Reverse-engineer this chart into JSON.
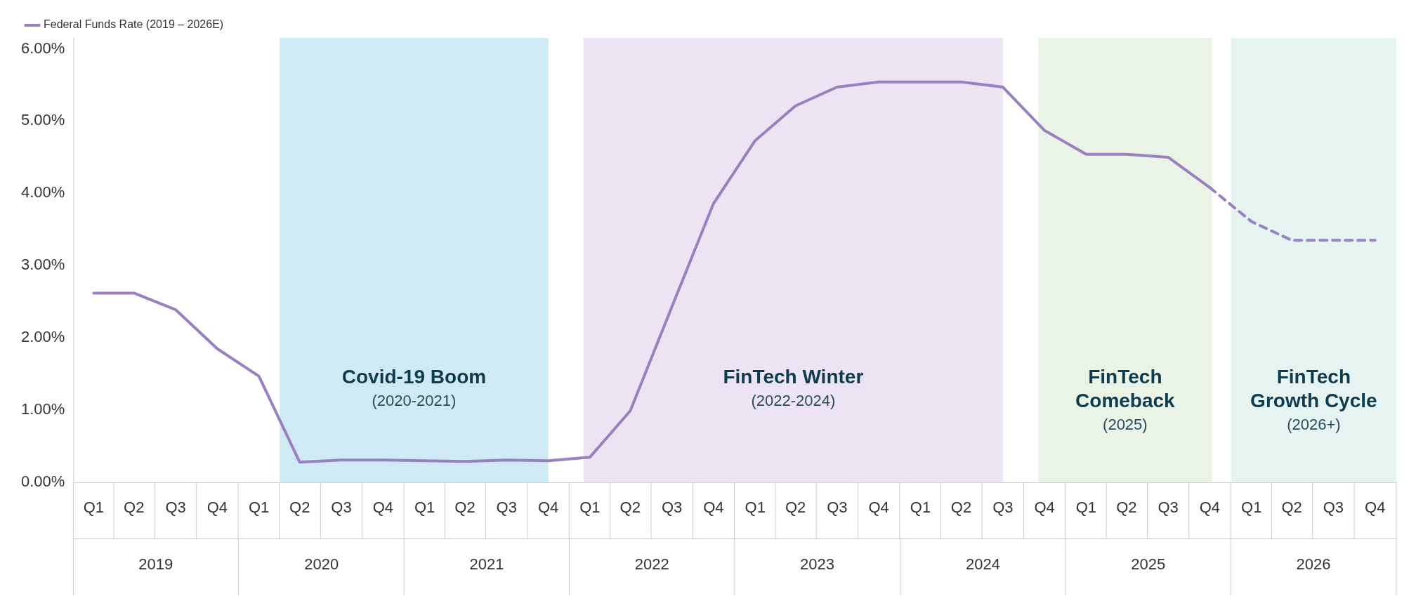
{
  "chart_data": {
    "type": "line",
    "x": [
      "2019-02-15",
      "2019-05-15",
      "2019-08-15",
      "2019-11-15",
      "2020-02-15",
      "2020-05-15",
      "2020-08-15",
      "2020-11-15",
      "2021-02-15",
      "2021-05-15",
      "2021-08-15",
      "2021-11-15",
      "2022-02-15",
      "2022-05-15",
      "2022-08-15",
      "2022-11-15",
      "2023-02-15",
      "2023-05-15",
      "2023-08-15",
      "2023-11-15",
      "2024-02-15",
      "2024-05-15",
      "2024-08-15",
      "2024-11-15",
      "2025-02-15",
      "2025-05-15",
      "2025-08-15",
      "2025-11-15",
      "2026-02-15",
      "2026-05-15",
      "2026-08-15",
      "2026-11-15"
    ],
    "series": [
      {
        "name": "Federal Funds Rate (2019 – 2026E)",
        "color": "#9a7fc1",
        "line_style": "solid",
        "values": [
          2.62,
          2.62,
          2.39,
          1.85,
          1.47,
          0.28,
          0.31,
          0.31,
          0.3,
          0.29,
          0.31,
          0.3,
          0.35,
          0.99,
          2.43,
          3.86,
          4.73,
          5.21,
          5.47,
          5.54,
          5.54,
          5.54,
          5.47,
          4.87,
          4.54,
          4.54,
          4.5,
          4.08,
          null,
          null,
          null,
          null
        ]
      },
      {
        "color": "#9a7fc1",
        "line_style": "dashed",
        "values": [
          null,
          null,
          null,
          null,
          null,
          null,
          null,
          null,
          null,
          null,
          null,
          null,
          null,
          null,
          null,
          null,
          null,
          null,
          null,
          null,
          null,
          null,
          null,
          null,
          null,
          null,
          null,
          4.08,
          3.61,
          3.35,
          3.35,
          3.35
        ]
      }
    ],
    "xlim": [
      "2019-01-01",
      "2027-01-01"
    ],
    "xticks": [
      {
        "value": "2019-02-15",
        "label": "Q1"
      },
      {
        "value": "2019-05-15",
        "label": "Q2"
      },
      {
        "value": "2019-08-15",
        "label": "Q3"
      },
      {
        "value": "2019-11-15",
        "label": "Q4"
      },
      {
        "value": "2020-02-15",
        "label": "Q1"
      },
      {
        "value": "2020-05-15",
        "label": "Q2"
      },
      {
        "value": "2020-08-15",
        "label": "Q3"
      },
      {
        "value": "2020-11-15",
        "label": "Q4"
      },
      {
        "value": "2021-02-15",
        "label": "Q1"
      },
      {
        "value": "2021-05-15",
        "label": "Q2"
      },
      {
        "value": "2021-08-15",
        "label": "Q3"
      },
      {
        "value": "2021-11-15",
        "label": "Q4"
      },
      {
        "value": "2022-02-15",
        "label": "Q1"
      },
      {
        "value": "2022-05-15",
        "label": "Q2"
      },
      {
        "value": "2022-08-15",
        "label": "Q3"
      },
      {
        "value": "2022-11-15",
        "label": "Q4"
      },
      {
        "value": "2023-02-15",
        "label": "Q1"
      },
      {
        "value": "2023-05-15",
        "label": "Q2"
      },
      {
        "value": "2023-08-15",
        "label": "Q3"
      },
      {
        "value": "2023-11-15",
        "label": "Q4"
      },
      {
        "value": "2024-02-15",
        "label": "Q1"
      },
      {
        "value": "2024-05-15",
        "label": "Q2"
      },
      {
        "value": "2024-08-15",
        "label": "Q3"
      },
      {
        "value": "2024-11-15",
        "label": "Q4"
      },
      {
        "value": "2025-02-15",
        "label": "Q1"
      },
      {
        "value": "2025-05-15",
        "label": "Q2"
      },
      {
        "value": "2025-08-15",
        "label": "Q3"
      },
      {
        "value": "2025-11-15",
        "label": "Q4"
      },
      {
        "value": "2026-02-15",
        "label": "Q1"
      },
      {
        "value": "2026-05-15",
        "label": "Q2"
      },
      {
        "value": "2026-08-15",
        "label": "Q3"
      },
      {
        "value": "2026-11-15",
        "label": "Q4"
      }
    ],
    "x2lim": [
      "2019-01-01",
      "2027-01-01"
    ],
    "x2ticks": [
      {
        "value": "2019-07-02",
        "label": "2019"
      },
      {
        "value": "2020-07-02",
        "label": "2020"
      },
      {
        "value": "2021-07-02",
        "label": "2021"
      },
      {
        "value": "2022-07-02",
        "label": "2022"
      },
      {
        "value": "2023-07-02",
        "label": "2023"
      },
      {
        "value": "2024-07-02",
        "label": "2024"
      },
      {
        "value": "2025-07-02",
        "label": "2025"
      },
      {
        "value": "2026-07-02",
        "label": "2026"
      }
    ],
    "ylim": [
      0,
      6.15
    ],
    "yticks": [
      {
        "value": 0,
        "label": "0.00%"
      },
      {
        "value": 1,
        "label": "1.00%"
      },
      {
        "value": 2,
        "label": "2.00%"
      },
      {
        "value": 3,
        "label": "3.00%"
      },
      {
        "value": 4,
        "label": "4.00%"
      },
      {
        "value": 5,
        "label": "5.00%"
      },
      {
        "value": 6,
        "label": "6.00%"
      }
    ],
    "bands": [
      {
        "axis": "x",
        "from": "2020-04-01",
        "to": "2021-11-15",
        "label": "Covid-19 Boom\n(2020-2021)",
        "color": "#cfeaf4"
      },
      {
        "axis": "x",
        "from": "2022-02-01",
        "to": "2024-08-15",
        "label": "FinTech Winter\n(2022-2024)",
        "color": "#ece4f2"
      },
      {
        "axis": "x",
        "from": "2024-11-01",
        "to": "2025-11-20",
        "label": "FinTech\nComeback\n(2025)",
        "color": "#eaf4e6"
      },
      {
        "axis": "x",
        "from": "2026-01-01",
        "to": "2027-01-01",
        "label": "FinTech\nGrowth Cycle\n(2026+)",
        "color": "#e6f4f1"
      }
    ],
    "grid": false,
    "legend": "top left",
    "marker": "none"
  }
}
